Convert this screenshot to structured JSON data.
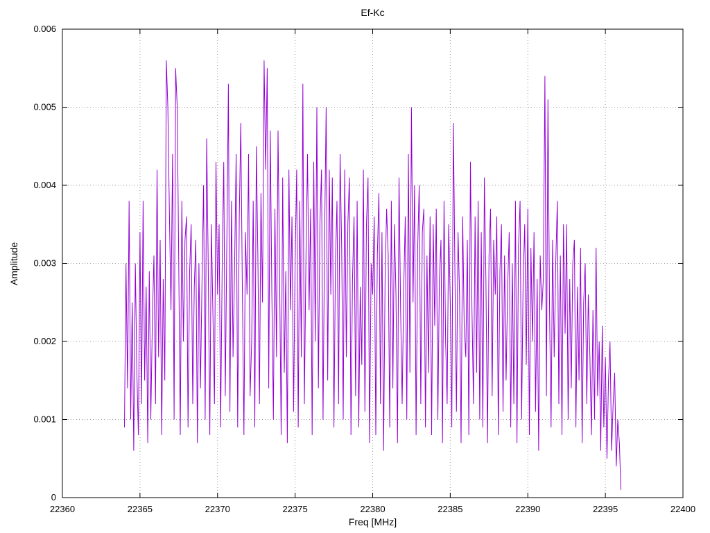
{
  "chart_data": {
    "type": "line",
    "title": "Ef-Kc",
    "xlabel": "Freq [MHz]",
    "ylabel": "Amplitude",
    "xlim": [
      22360,
      22400
    ],
    "ylim": [
      0,
      0.006
    ],
    "x_ticks": [
      22360,
      22365,
      22370,
      22375,
      22380,
      22385,
      22390,
      22395,
      22400
    ],
    "y_ticks": [
      0,
      0.001,
      0.002,
      0.003,
      0.004,
      0.005,
      0.006
    ],
    "y_tick_labels": [
      "0",
      "0.001",
      "0.002",
      "0.003",
      "0.004",
      "0.005",
      "0.006"
    ],
    "grid": true,
    "legend_position": "none",
    "line_color": "#9400d3",
    "grid_color": "#9a9a9a",
    "border_color": "#000000",
    "series": {
      "name": "Ef-Kc",
      "x_start": 22364.0,
      "x_step": 0.1,
      "amp_scale": 0.0001,
      "values": [
        9,
        30,
        14,
        38,
        10,
        25,
        6,
        30,
        16,
        8,
        34,
        12,
        38,
        15,
        27,
        7,
        29,
        10,
        23,
        31,
        12,
        42,
        18,
        33,
        8,
        28,
        15,
        56,
        50,
        36,
        24,
        44,
        10,
        55,
        50,
        30,
        8,
        38,
        20,
        33,
        36,
        9,
        29,
        35,
        12,
        27,
        33,
        7,
        30,
        14,
        28,
        40,
        10,
        46,
        30,
        8,
        35,
        24,
        12,
        43,
        26,
        35,
        9,
        30,
        43,
        13,
        33,
        53,
        11,
        38,
        18,
        30,
        44,
        9,
        36,
        48,
        27,
        8,
        34,
        26,
        44,
        13,
        20,
        38,
        9,
        45,
        31,
        12,
        39,
        25,
        56,
        42,
        55,
        14,
        47,
        26,
        10,
        37,
        18,
        47,
        28,
        8,
        41,
        16,
        29,
        7,
        42,
        24,
        36,
        11,
        30,
        42,
        9,
        38,
        18,
        53,
        12,
        31,
        44,
        24,
        37,
        8,
        43,
        20,
        50,
        14,
        35,
        42,
        10,
        33,
        50,
        15,
        42,
        26,
        41,
        9,
        30,
        38,
        12,
        44,
        32,
        10,
        42,
        18,
        35,
        41,
        8,
        28,
        36,
        13,
        38,
        9,
        27,
        17,
        42,
        11,
        35,
        41,
        7,
        30,
        26,
        36,
        8,
        31,
        39,
        12,
        34,
        6,
        28,
        37,
        31,
        9,
        38,
        14,
        35,
        26,
        7,
        41,
        24,
        12,
        27,
        36,
        10,
        44,
        16,
        50,
        25,
        40,
        8,
        32,
        40,
        12,
        34,
        37,
        9,
        31,
        16,
        36,
        8,
        35,
        22,
        37,
        10,
        28,
        33,
        7,
        38,
        20,
        12,
        35,
        25,
        9,
        48,
        29,
        11,
        34,
        26,
        7,
        36,
        22,
        18,
        33,
        8,
        43,
        24,
        12,
        36,
        16,
        38,
        10,
        34,
        9,
        41,
        28,
        7,
        31,
        37,
        13,
        33,
        26,
        36,
        8,
        29,
        35,
        11,
        31,
        15,
        27,
        34,
        9,
        30,
        12,
        38,
        7,
        32,
        38,
        10,
        28,
        35,
        17,
        37,
        8,
        32,
        20,
        34,
        11,
        28,
        6,
        31,
        24,
        28,
        54,
        13,
        51,
        24,
        9,
        33,
        18,
        30,
        38,
        12,
        31,
        8,
        35,
        21,
        35,
        10,
        28,
        14,
        30,
        33,
        9,
        27,
        15,
        32,
        7,
        25,
        30,
        12,
        26,
        18,
        8,
        24,
        10,
        32,
        13,
        20,
        6,
        22,
        9,
        18,
        5,
        15,
        20,
        6,
        12,
        16,
        4,
        10,
        7,
        1
      ]
    }
  }
}
